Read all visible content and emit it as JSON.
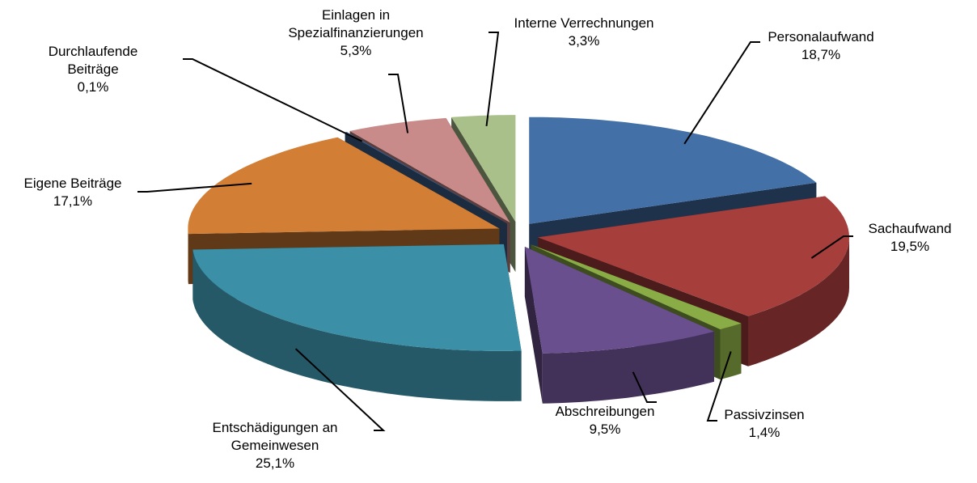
{
  "chart_data": {
    "type": "pie",
    "labels": [
      "Personalaufwand",
      "Sachaufwand",
      "Passivzinsen",
      "Abschreibungen",
      "Entschädigungen an Gemeinwesen",
      "Eigene Beiträge",
      "Durchlaufende Beiträge",
      "Einlagen in Spezialfinanzierungen",
      "Interne Verrechnungen"
    ],
    "values": [
      18.7,
      19.5,
      1.4,
      9.5,
      25.1,
      17.1,
      0.1,
      5.3,
      3.3
    ],
    "value_labels": [
      "18,7%",
      "19,5%",
      "1,4%",
      "9,5%",
      "25,1%",
      "17,1%",
      "0,1%",
      "5,3%",
      "3,3%"
    ],
    "colors": [
      "#4470a8",
      "#a63e3c",
      "#8aac46",
      "#6a4f8f",
      "#3b8fa6",
      "#d37e35",
      "#3d5f8f",
      "#c98a8a",
      "#a9c08a"
    ]
  }
}
